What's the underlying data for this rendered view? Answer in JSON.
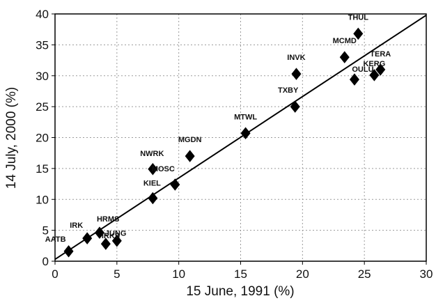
{
  "chart_data": {
    "type": "scatter",
    "xlabel": "15 June, 1991 (%)",
    "ylabel": "14 July, 2000 (%)",
    "xlim": [
      0,
      30
    ],
    "ylim": [
      0,
      40
    ],
    "xticks": [
      "0",
      "5",
      "10",
      "15",
      "20",
      "25",
      "30"
    ],
    "yticks": [
      "0",
      "5",
      "10",
      "15",
      "20",
      "25",
      "30",
      "35",
      "40"
    ],
    "grid": true,
    "marker": "diamond",
    "points": [
      {
        "label": "AATB",
        "x": 1.1,
        "y": 1.6
      },
      {
        "label": "IRK",
        "x": 2.6,
        "y": 3.7
      },
      {
        "label": "HRMS",
        "x": 3.6,
        "y": 4.6
      },
      {
        "label": "IRKS",
        "x": 4.1,
        "y": 2.8
      },
      {
        "label": "JUNG",
        "x": 5.0,
        "y": 3.3
      },
      {
        "label": "KIEL",
        "x": 7.9,
        "y": 10.2
      },
      {
        "label": "NWRK",
        "x": 7.9,
        "y": 14.9
      },
      {
        "label": "MOSC",
        "x": 9.7,
        "y": 12.4
      },
      {
        "label": "MGDN",
        "x": 10.9,
        "y": 17.0
      },
      {
        "label": "MTWL",
        "x": 15.4,
        "y": 20.7
      },
      {
        "label": "TXBY",
        "x": 19.4,
        "y": 25.0
      },
      {
        "label": "INVK",
        "x": 19.5,
        "y": 30.3
      },
      {
        "label": "MCMD",
        "x": 23.4,
        "y": 33.0
      },
      {
        "label": "THUL",
        "x": 24.5,
        "y": 36.8
      },
      {
        "label": "OULU",
        "x": 24.2,
        "y": 29.4
      },
      {
        "label": "KERG",
        "x": 25.8,
        "y": 30.1
      },
      {
        "label": "TERA",
        "x": 26.3,
        "y": 31.0
      }
    ],
    "fit_line": {
      "x": [
        0,
        30
      ],
      "y": [
        0.3,
        39.8
      ]
    }
  }
}
